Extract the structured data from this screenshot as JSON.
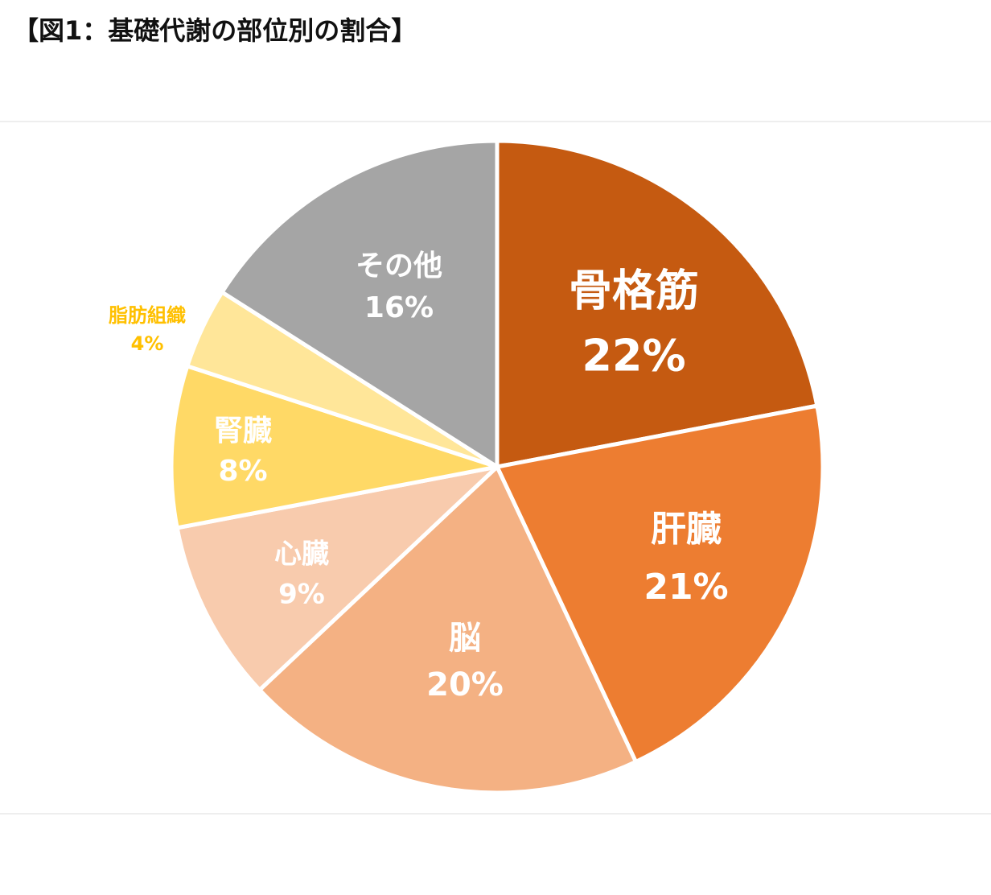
{
  "chart_data": {
    "type": "pie",
    "title": "【図1：基礎代謝の部位別の割合】",
    "categories": [
      "骨格筋",
      "肝臓",
      "脳",
      "心臓",
      "腎臓",
      "脂肪組織",
      "その他"
    ],
    "values": [
      22,
      21,
      20,
      9,
      8,
      4,
      16
    ],
    "value_labels": [
      "22%",
      "21%",
      "20%",
      "9%",
      "8%",
      "4%",
      "16%"
    ],
    "colors": [
      "#c55a11",
      "#ed7d31",
      "#f4b183",
      "#f8cbad",
      "#ffd966",
      "#ffe699",
      "#a5a5a5"
    ]
  }
}
